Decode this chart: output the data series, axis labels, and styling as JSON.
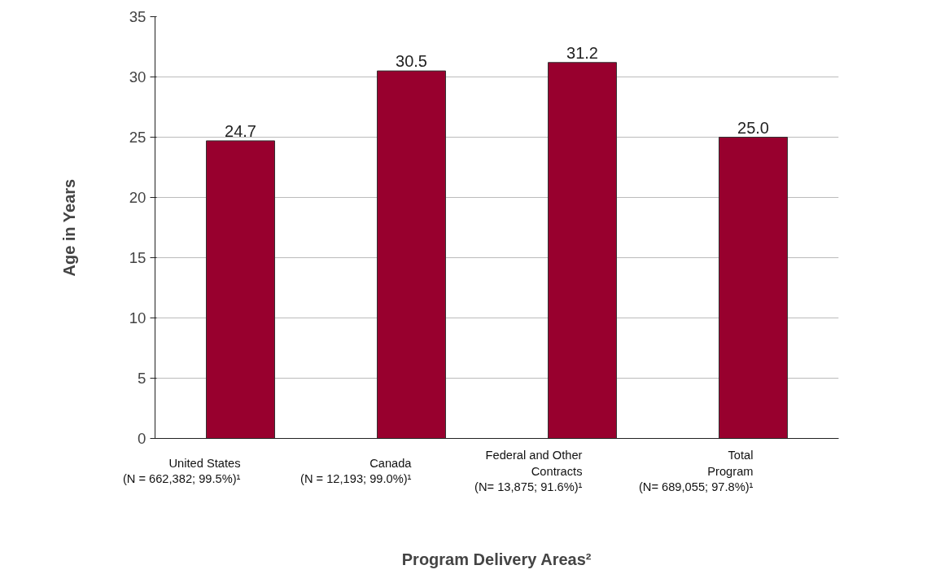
{
  "chart_data": {
    "type": "bar",
    "xlabel": "Program Delivery Areas²",
    "ylabel": "Age in Years",
    "categories": [
      "United States\n(N = 662,382; 99.5%)¹",
      "Canada\n(N = 12,193; 99.0%)¹",
      "Federal and Other\nContracts\n(N= 13,875; 91.6%)¹",
      "Total\nProgram\n(N= 689,055; 97.8%)¹"
    ],
    "values": [
      24.7,
      30.5,
      31.2,
      25.0
    ],
    "value_labels": [
      "24.7",
      "30.5",
      "31.2",
      "25.0"
    ],
    "color": "#98002e",
    "ylim": [
      0,
      35
    ],
    "yticks": [
      0,
      5,
      10,
      15,
      20,
      25,
      30,
      35
    ],
    "grid": "y"
  }
}
